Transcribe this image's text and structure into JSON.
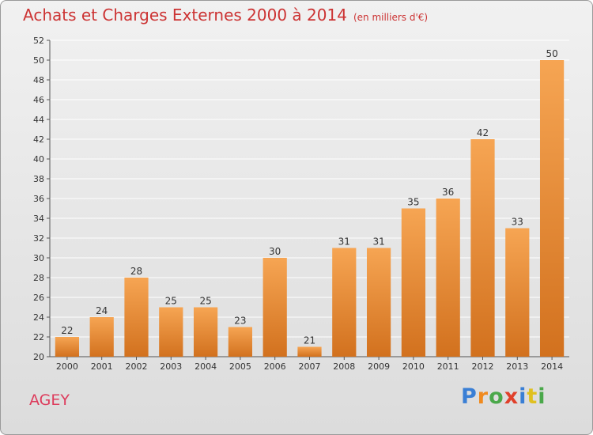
{
  "title": "Achats et Charges Externes 2000 à 2014",
  "subtitle": "(en milliers d'€)",
  "place": "AGEY",
  "brand": {
    "text": "Proxiti",
    "letter_colors": [
      "#3a7fd5",
      "#f08a1e",
      "#4aa84a",
      "#e0402a",
      "#3a7fd5",
      "#e0c020",
      "#4aa84a"
    ]
  },
  "colors": {
    "bar_light": "#f6a553",
    "bar_dark": "#d2711e",
    "grid": "#ffffff",
    "axis_text": "#333333"
  },
  "chart_data": {
    "type": "bar",
    "categories": [
      "2000",
      "2001",
      "2002",
      "2003",
      "2004",
      "2005",
      "2006",
      "2007",
      "2008",
      "2009",
      "2010",
      "2011",
      "2012",
      "2013",
      "2014"
    ],
    "values": [
      22,
      24,
      28,
      25,
      25,
      23,
      30,
      21,
      31,
      31,
      35,
      36,
      42,
      33,
      50
    ],
    "ylim": [
      20,
      52
    ],
    "ytick_step": 2,
    "grid": true,
    "data_labels": true
  }
}
